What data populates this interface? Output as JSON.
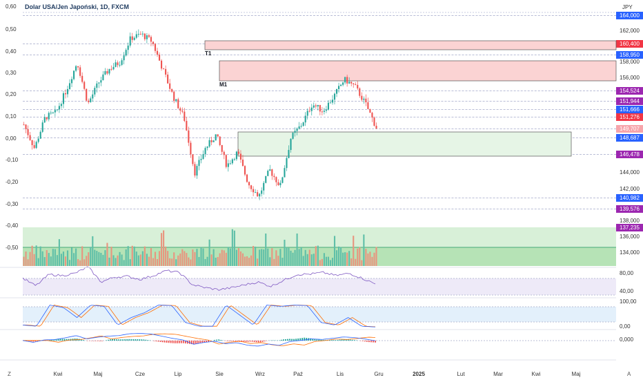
{
  "header": {
    "title": "Dolar USA/Jen Japoński, 1D, FXCM",
    "currency": "JPY"
  },
  "left_axis": [
    "0,60",
    "0,50",
    "0,40",
    "0,30",
    "0,20",
    "0,10",
    "0,00",
    "-0,10",
    "-0,20",
    "-0,30",
    "-0,40",
    "-0,50"
  ],
  "right_axis_ticks": [
    "162,000",
    "158,000",
    "156,000",
    "144,000",
    "142,000",
    "138,000",
    "136,000",
    "134,000"
  ],
  "price_badges": [
    {
      "label": "164,000",
      "color": "#2962ff"
    },
    {
      "label": "160,400",
      "color": "#f23645"
    },
    {
      "label": "158,950",
      "color": "#2962ff"
    },
    {
      "label": "154,524",
      "color": "#9c27b0"
    },
    {
      "label": "151,944",
      "color": "#9c27b0"
    },
    {
      "label": "151,666",
      "color": "#2962ff"
    },
    {
      "label": "151,276",
      "color": "#f23645"
    },
    {
      "label": "149,707",
      "color": "#f7a5ab"
    },
    {
      "label": "148,687",
      "color": "#2962ff"
    },
    {
      "label": "146,478",
      "color": "#9c27b0"
    },
    {
      "label": "140,982",
      "color": "#2962ff"
    },
    {
      "label": "139,576",
      "color": "#9c27b0"
    },
    {
      "label": "137,235",
      "color": "#9c27b0"
    }
  ],
  "zones": [
    {
      "label": "T1"
    },
    {
      "label": "M1"
    }
  ],
  "rsi_axis": [
    "80,00",
    "40,00"
  ],
  "stoch_axis": [
    "100,00",
    "0,00"
  ],
  "macd_axis": [
    "0,000"
  ],
  "time_axis": [
    "Kwi",
    "Maj",
    "Cze",
    "Lip",
    "Sie",
    "Wrz",
    "Paź",
    "Lis",
    "Gru",
    "2025",
    "Lut",
    "Mar",
    "Kwi",
    "Maj"
  ],
  "footer": {
    "left_icon": "timezone-icon",
    "right_icon": "auto-scale-icon",
    "left_label": "Z",
    "right_label": "A"
  },
  "colors": {
    "up": "#26a69a",
    "down": "#ef5350",
    "rsi": "#7e57c2",
    "stoch_k": "#2962ff",
    "stoch_d": "#ff6d00"
  },
  "chart_data": {
    "type": "candlestick",
    "price_path": [
      150.2,
      147.2,
      151.1,
      151.7,
      154.6,
      158.1,
      152.8,
      155.5,
      157.2,
      158.1,
      161.1,
      161.6,
      160.7,
      157.2,
      153.7,
      151.1,
      144.1,
      147.2,
      148.9,
      145.0,
      146.7,
      142.8,
      141.1,
      144.5,
      142.4,
      148.5,
      150.2,
      152.8,
      151.9,
      153.7,
      155.9,
      155.0,
      152.8,
      149.8
    ],
    "rsi_path": [
      55,
      35,
      65,
      62,
      68,
      85,
      45,
      58,
      60,
      52,
      62,
      75,
      70,
      38,
      30,
      25,
      30,
      38,
      45,
      34,
      50,
      65,
      66,
      70,
      62,
      68,
      55,
      40
    ],
    "stoch_path": [
      10,
      5,
      90,
      80,
      40,
      90,
      85,
      10,
      40,
      60,
      90,
      88,
      20,
      5,
      5,
      90,
      50,
      10,
      90,
      85,
      90,
      88,
      20,
      10,
      40,
      5,
      2
    ]
  }
}
